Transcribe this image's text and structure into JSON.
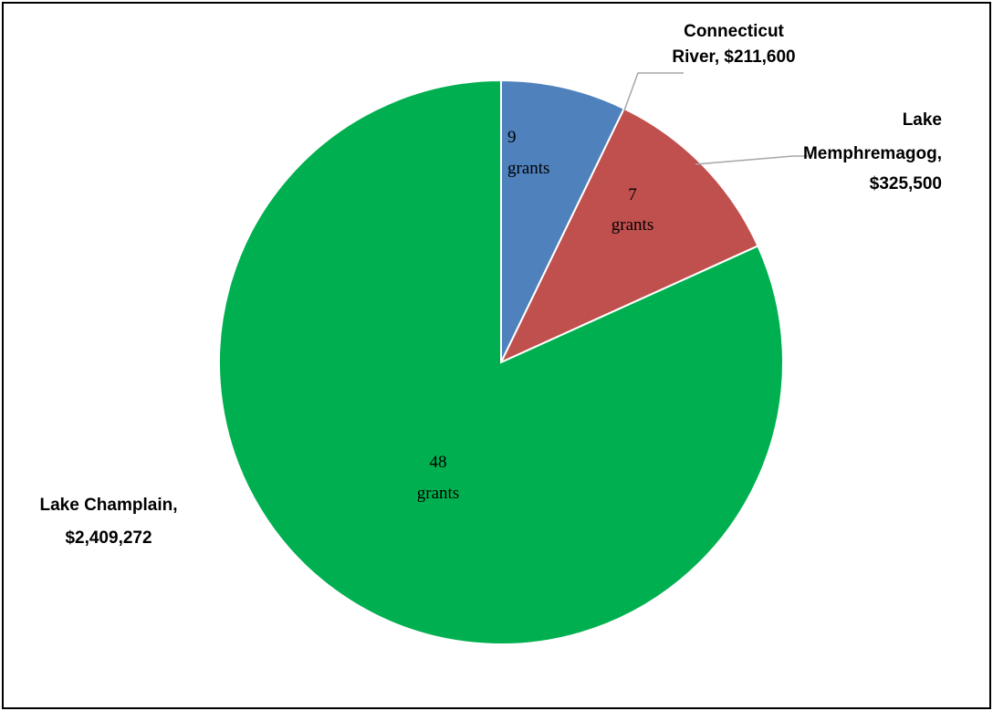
{
  "chart_data": {
    "type": "pie",
    "title": "",
    "slices": [
      {
        "category": "Connecticut River",
        "value": 211600,
        "value_label": "$211,600",
        "grants": 9,
        "color": "#4F81BD",
        "label_lines": [
          "Connecticut",
          "River, $211,600"
        ],
        "inside_lines": [
          "9",
          "grants"
        ]
      },
      {
        "category": "Lake Memphremagog",
        "value": 325500,
        "value_label": "$325,500",
        "grants": 7,
        "color": "#C0504D",
        "label_lines": [
          "Lake",
          "Memphremagog,",
          "$325,500"
        ],
        "inside_lines": [
          "7",
          "grants"
        ]
      },
      {
        "category": "Lake Champlain",
        "value": 2409272,
        "value_label": "$2,409,272",
        "grants": 48,
        "color": "#00B050",
        "label_lines": [
          "Lake Champlain,",
          "$2,409,272"
        ],
        "inside_lines": [
          "48",
          "grants"
        ]
      }
    ],
    "start_angle": "12 o'clock",
    "direction": "clockwise",
    "legend": "none",
    "leader_lines": true
  }
}
